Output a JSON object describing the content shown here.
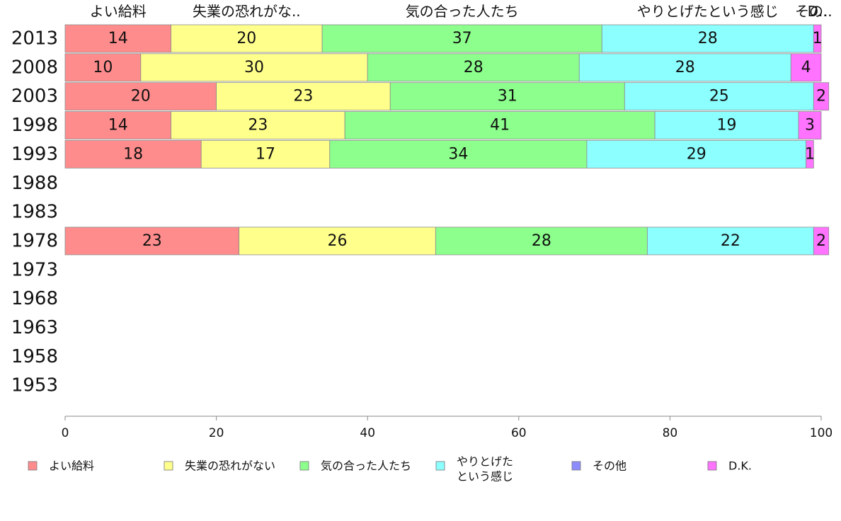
{
  "chart_data": {
    "type": "bar",
    "orientation": "horizontal",
    "stacked": true,
    "categories": [
      "2013",
      "2008",
      "2003",
      "1998",
      "1993",
      "1988",
      "1983",
      "1978",
      "1973",
      "1968",
      "1963",
      "1958",
      "1953"
    ],
    "series": [
      {
        "name": "よい給料",
        "color": "#ff8c8c",
        "values": [
          14,
          10,
          20,
          14,
          18,
          null,
          null,
          23,
          null,
          null,
          null,
          null,
          null
        ]
      },
      {
        "name": "失業の恐れがない",
        "color": "#ffff8c",
        "values": [
          20,
          30,
          23,
          23,
          17,
          null,
          null,
          26,
          null,
          null,
          null,
          null,
          null
        ]
      },
      {
        "name": "気の合った人たち",
        "color": "#8cff8c",
        "values": [
          37,
          28,
          31,
          41,
          34,
          null,
          null,
          28,
          null,
          null,
          null,
          null,
          null
        ]
      },
      {
        "name": "やりとげたという感じ",
        "legend_lines": [
          "やりとげた",
          "という感じ"
        ],
        "color": "#8cffff",
        "values": [
          28,
          28,
          25,
          19,
          29,
          null,
          null,
          22,
          null,
          null,
          null,
          null,
          null
        ]
      },
      {
        "name": "その他",
        "color": "#8c8cff",
        "values": [
          0,
          0,
          0,
          0,
          0,
          null,
          null,
          0,
          null,
          null,
          null,
          null,
          null
        ]
      },
      {
        "name": "D.K.",
        "color": "#ff73ff",
        "values": [
          1,
          4,
          2,
          3,
          1,
          null,
          null,
          2,
          null,
          null,
          null,
          null,
          null
        ]
      }
    ],
    "top_labels": [
      "よい給料",
      "失業の恐れがな..",
      "気の合った人たち",
      "やりとげたという感じ",
      "その..",
      "D.."
    ],
    "xlim": [
      0,
      100
    ],
    "xticks": [
      "0",
      "20",
      "40",
      "60",
      "80",
      "100"
    ],
    "grid": false,
    "legend_position": "bottom"
  }
}
